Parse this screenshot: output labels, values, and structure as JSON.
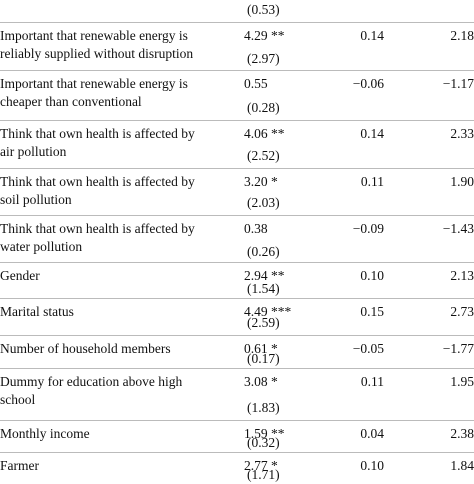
{
  "table": {
    "rows": [
      {
        "se": "(0.53)"
      },
      {
        "label": "Important that renewable energy is reliably supplied without disruption",
        "estimate": "4.29 **",
        "se": "(2.97)",
        "col3": "0.14",
        "col4": "2.18"
      },
      {
        "label": "Important that renewable energy is cheaper than conventional",
        "estimate": "0.55",
        "se": "(0.28)",
        "col3": "−0.06",
        "col4": "−1.17"
      },
      {
        "label": "Think that own health is affected by air pollution",
        "estimate": "4.06 **",
        "se": "(2.52)",
        "col3": "0.14",
        "col4": "2.33"
      },
      {
        "label": "Think that own health is affected by soil pollution",
        "estimate": "3.20 *",
        "se": "(2.03)",
        "col3": "0.11",
        "col4": "1.90"
      },
      {
        "label": "Think that own health is affected by water pollution",
        "estimate": "0.38",
        "se": "(0.26)",
        "col3": "−0.09",
        "col4": "−1.43"
      },
      {
        "label": "Gender",
        "estimate": "2.94 **",
        "se": "(1.54)",
        "col3": "0.10",
        "col4": "2.13"
      },
      {
        "label": "Marital status",
        "estimate": "4.49 ***",
        "se": "(2.59)",
        "col3": "0.15",
        "col4": "2.73"
      },
      {
        "label": "Number of household members",
        "estimate": "0.61 *",
        "se": "(0.17)",
        "col3": "−0.05",
        "col4": "−1.77"
      },
      {
        "label": "Dummy for education above high school",
        "estimate": "3.08 *",
        "se": "(1.83)",
        "col3": "0.11",
        "col4": "1.95"
      },
      {
        "label": "Monthly income",
        "estimate": "1.59 **",
        "se": "(0.32)",
        "col3": "0.04",
        "col4": "2.38"
      },
      {
        "label": "Farmer",
        "estimate": "2.77 *",
        "se": "(1.71)",
        "col3": "0.10",
        "col4": "1.84"
      }
    ]
  }
}
